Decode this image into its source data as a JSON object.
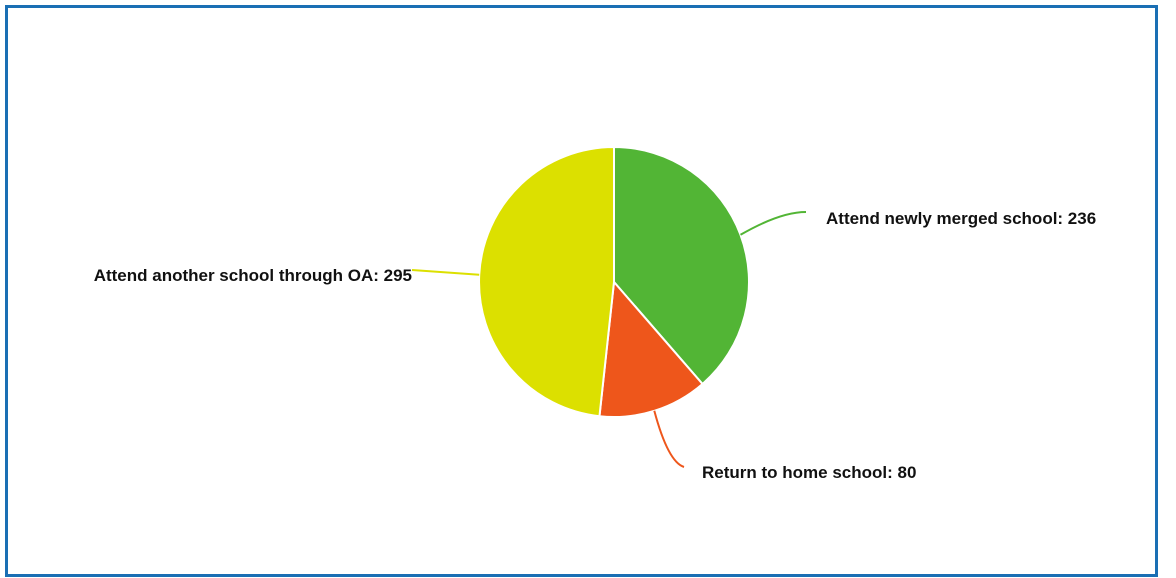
{
  "chart_data": {
    "type": "pie",
    "slices": [
      {
        "label": "Attend newly merged school",
        "value": 236,
        "display": "Attend newly merged school: 236",
        "color": "#52b535"
      },
      {
        "label": "Return to home school",
        "value": 80,
        "display": "Return to home school: 80",
        "color": "#ee561b"
      },
      {
        "label": "Attend another school through OA",
        "value": 295,
        "display": "Attend another school through OA: 295",
        "color": "#dce000"
      }
    ],
    "start_angle_deg": 0,
    "direction": "clockwise",
    "slice_border_color": "#ffffff"
  },
  "frame": {
    "border_color": "#1a6fb4"
  }
}
